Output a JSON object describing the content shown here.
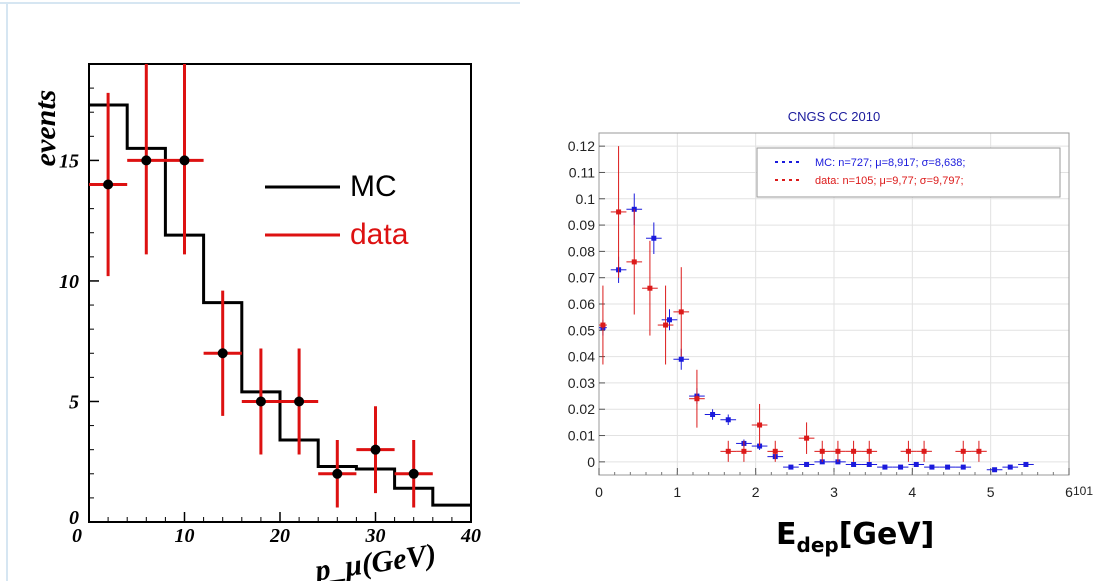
{
  "chart_data": [
    {
      "type": "histogram",
      "ylabel": "events",
      "xlabel": "p_μ(GeV)",
      "xlim": [
        0,
        40
      ],
      "ylim": [
        0,
        19
      ],
      "x_ticks": [
        0,
        10,
        20,
        30,
        40
      ],
      "y_ticks": [
        0,
        5,
        10,
        15
      ],
      "legend_position": "right",
      "series": [
        {
          "name": "MC",
          "color": "#000000",
          "bin_edges": [
            0,
            4,
            8,
            12,
            16,
            20,
            24,
            28,
            32,
            36,
            40
          ],
          "values": [
            17.3,
            15.5,
            11.9,
            9.1,
            5.4,
            3.4,
            2.3,
            2.2,
            1.4,
            0.7
          ]
        },
        {
          "name": "data",
          "color": "#dd1111",
          "marker_color": "#000000",
          "points": [
            {
              "x": 2,
              "y": 14,
              "xerr": 2,
              "ylo": 10.2,
              "yhi": 17.8
            },
            {
              "x": 6,
              "y": 15,
              "xerr": 2,
              "ylo": 11.1,
              "yhi": 19.0
            },
            {
              "x": 10,
              "y": 15,
              "xerr": 2,
              "ylo": 11.1,
              "yhi": 19.0
            },
            {
              "x": 14,
              "y": 7,
              "xerr": 2,
              "ylo": 4.4,
              "yhi": 9.6
            },
            {
              "x": 18,
              "y": 5,
              "xerr": 2,
              "ylo": 2.8,
              "yhi": 7.2
            },
            {
              "x": 22,
              "y": 5,
              "xerr": 2,
              "ylo": 2.8,
              "yhi": 7.2
            },
            {
              "x": 26,
              "y": 2,
              "xerr": 2,
              "ylo": 0.6,
              "yhi": 3.4
            },
            {
              "x": 30,
              "y": 3,
              "xerr": 2,
              "ylo": 1.2,
              "yhi": 4.8
            },
            {
              "x": 34,
              "y": 2,
              "xerr": 2,
              "ylo": 0.6,
              "yhi": 3.4
            }
          ]
        }
      ]
    },
    {
      "type": "scatter",
      "title": "CNGS CC 2010",
      "xlabel": "E_dep[GeV]",
      "x_multiplier": "10^1",
      "xlim": [
        0,
        6
      ],
      "ylim": [
        -0.005,
        0.125
      ],
      "x_ticks": [
        0,
        1,
        2,
        3,
        4,
        5,
        6
      ],
      "y_ticks": [
        0,
        0.01,
        0.02,
        0.03,
        0.04,
        0.05,
        0.06,
        0.07,
        0.08,
        0.09,
        0.1,
        0.11,
        0.12
      ],
      "grid": true,
      "legend_position": "top-right",
      "series": [
        {
          "name": "MC: n=727; μ=8,917; σ=8,638;",
          "color": "#1a1adc",
          "points": [
            {
              "x": 0.05,
              "y": 0.051,
              "xerr": 0.05,
              "yerr": 0.003
            },
            {
              "x": 0.25,
              "y": 0.073,
              "xerr": 0.1,
              "yerr": 0.005
            },
            {
              "x": 0.45,
              "y": 0.096,
              "xerr": 0.1,
              "yerr": 0.006
            },
            {
              "x": 0.7,
              "y": 0.085,
              "xerr": 0.1,
              "yerr": 0.006
            },
            {
              "x": 0.9,
              "y": 0.054,
              "xerr": 0.1,
              "yerr": 0.004
            },
            {
              "x": 1.05,
              "y": 0.039,
              "xerr": 0.1,
              "yerr": 0.004
            },
            {
              "x": 1.25,
              "y": 0.025,
              "xerr": 0.1,
              "yerr": 0.003
            },
            {
              "x": 1.45,
              "y": 0.018,
              "xerr": 0.1,
              "yerr": 0.002
            },
            {
              "x": 1.65,
              "y": 0.016,
              "xerr": 0.1,
              "yerr": 0.002
            },
            {
              "x": 1.85,
              "y": 0.007,
              "xerr": 0.1,
              "yerr": 0.0015
            },
            {
              "x": 2.05,
              "y": 0.006,
              "xerr": 0.1,
              "yerr": 0.0015
            },
            {
              "x": 2.25,
              "y": 0.002,
              "xerr": 0.1,
              "yerr": 0.001
            },
            {
              "x": 2.45,
              "y": -0.002,
              "xerr": 0.1,
              "yerr": 0.0008
            },
            {
              "x": 2.65,
              "y": -0.001,
              "xerr": 0.1,
              "yerr": 0.0008
            },
            {
              "x": 2.85,
              "y": 0.0,
              "xerr": 0.1,
              "yerr": 0.0008
            },
            {
              "x": 3.05,
              "y": 0.0,
              "xerr": 0.1,
              "yerr": 0.0008
            },
            {
              "x": 3.25,
              "y": -0.001,
              "xerr": 0.1,
              "yerr": 0.0008
            },
            {
              "x": 3.45,
              "y": -0.001,
              "xerr": 0.1,
              "yerr": 0.0008
            },
            {
              "x": 3.65,
              "y": -0.002,
              "xerr": 0.1,
              "yerr": 0.0008
            },
            {
              "x": 3.85,
              "y": -0.002,
              "xerr": 0.1,
              "yerr": 0.0008
            },
            {
              "x": 4.05,
              "y": -0.001,
              "xerr": 0.1,
              "yerr": 0.0008
            },
            {
              "x": 4.25,
              "y": -0.002,
              "xerr": 0.1,
              "yerr": 0.0008
            },
            {
              "x": 4.45,
              "y": -0.002,
              "xerr": 0.1,
              "yerr": 0.0008
            },
            {
              "x": 4.65,
              "y": -0.002,
              "xerr": 0.1,
              "yerr": 0.0008
            },
            {
              "x": 5.05,
              "y": -0.003,
              "xerr": 0.1,
              "yerr": 0.0008
            },
            {
              "x": 5.25,
              "y": -0.002,
              "xerr": 0.1,
              "yerr": 0.0008
            },
            {
              "x": 5.45,
              "y": -0.001,
              "xerr": 0.1,
              "yerr": 0.0008
            }
          ]
        },
        {
          "name": "data: n=105; μ=9,77; σ=9,797;",
          "color": "#dc1a1a",
          "points": [
            {
              "x": 0.05,
              "y": 0.052,
              "xerr": 0.05,
              "yerr": 0.015
            },
            {
              "x": 0.25,
              "y": 0.095,
              "xerr": 0.1,
              "yerr": 0.025
            },
            {
              "x": 0.45,
              "y": 0.076,
              "xerr": 0.1,
              "yerr": 0.02
            },
            {
              "x": 0.65,
              "y": 0.066,
              "xerr": 0.1,
              "yerr": 0.018
            },
            {
              "x": 0.85,
              "y": 0.052,
              "xerr": 0.1,
              "yerr": 0.015
            },
            {
              "x": 1.05,
              "y": 0.057,
              "xerr": 0.1,
              "yerr": 0.017
            },
            {
              "x": 1.25,
              "y": 0.024,
              "xerr": 0.1,
              "yerr": 0.011
            },
            {
              "x": 1.65,
              "y": 0.004,
              "xerr": 0.1,
              "yerr": 0.004
            },
            {
              "x": 1.85,
              "y": 0.004,
              "xerr": 0.1,
              "yerr": 0.004
            },
            {
              "x": 2.05,
              "y": 0.014,
              "xerr": 0.1,
              "yerr": 0.008
            },
            {
              "x": 2.25,
              "y": 0.004,
              "xerr": 0.1,
              "yerr": 0.004
            },
            {
              "x": 2.65,
              "y": 0.009,
              "xerr": 0.1,
              "yerr": 0.006
            },
            {
              "x": 2.85,
              "y": 0.004,
              "xerr": 0.1,
              "yerr": 0.004
            },
            {
              "x": 3.05,
              "y": 0.004,
              "xerr": 0.1,
              "yerr": 0.004
            },
            {
              "x": 3.25,
              "y": 0.004,
              "xerr": 0.1,
              "yerr": 0.004
            },
            {
              "x": 3.45,
              "y": 0.004,
              "xerr": 0.1,
              "yerr": 0.004
            },
            {
              "x": 3.95,
              "y": 0.004,
              "xerr": 0.1,
              "yerr": 0.004
            },
            {
              "x": 4.15,
              "y": 0.004,
              "xerr": 0.1,
              "yerr": 0.004
            },
            {
              "x": 4.65,
              "y": 0.004,
              "xerr": 0.1,
              "yerr": 0.004
            },
            {
              "x": 4.85,
              "y": 0.004,
              "xerr": 0.1,
              "yerr": 0.004
            }
          ]
        }
      ]
    }
  ]
}
